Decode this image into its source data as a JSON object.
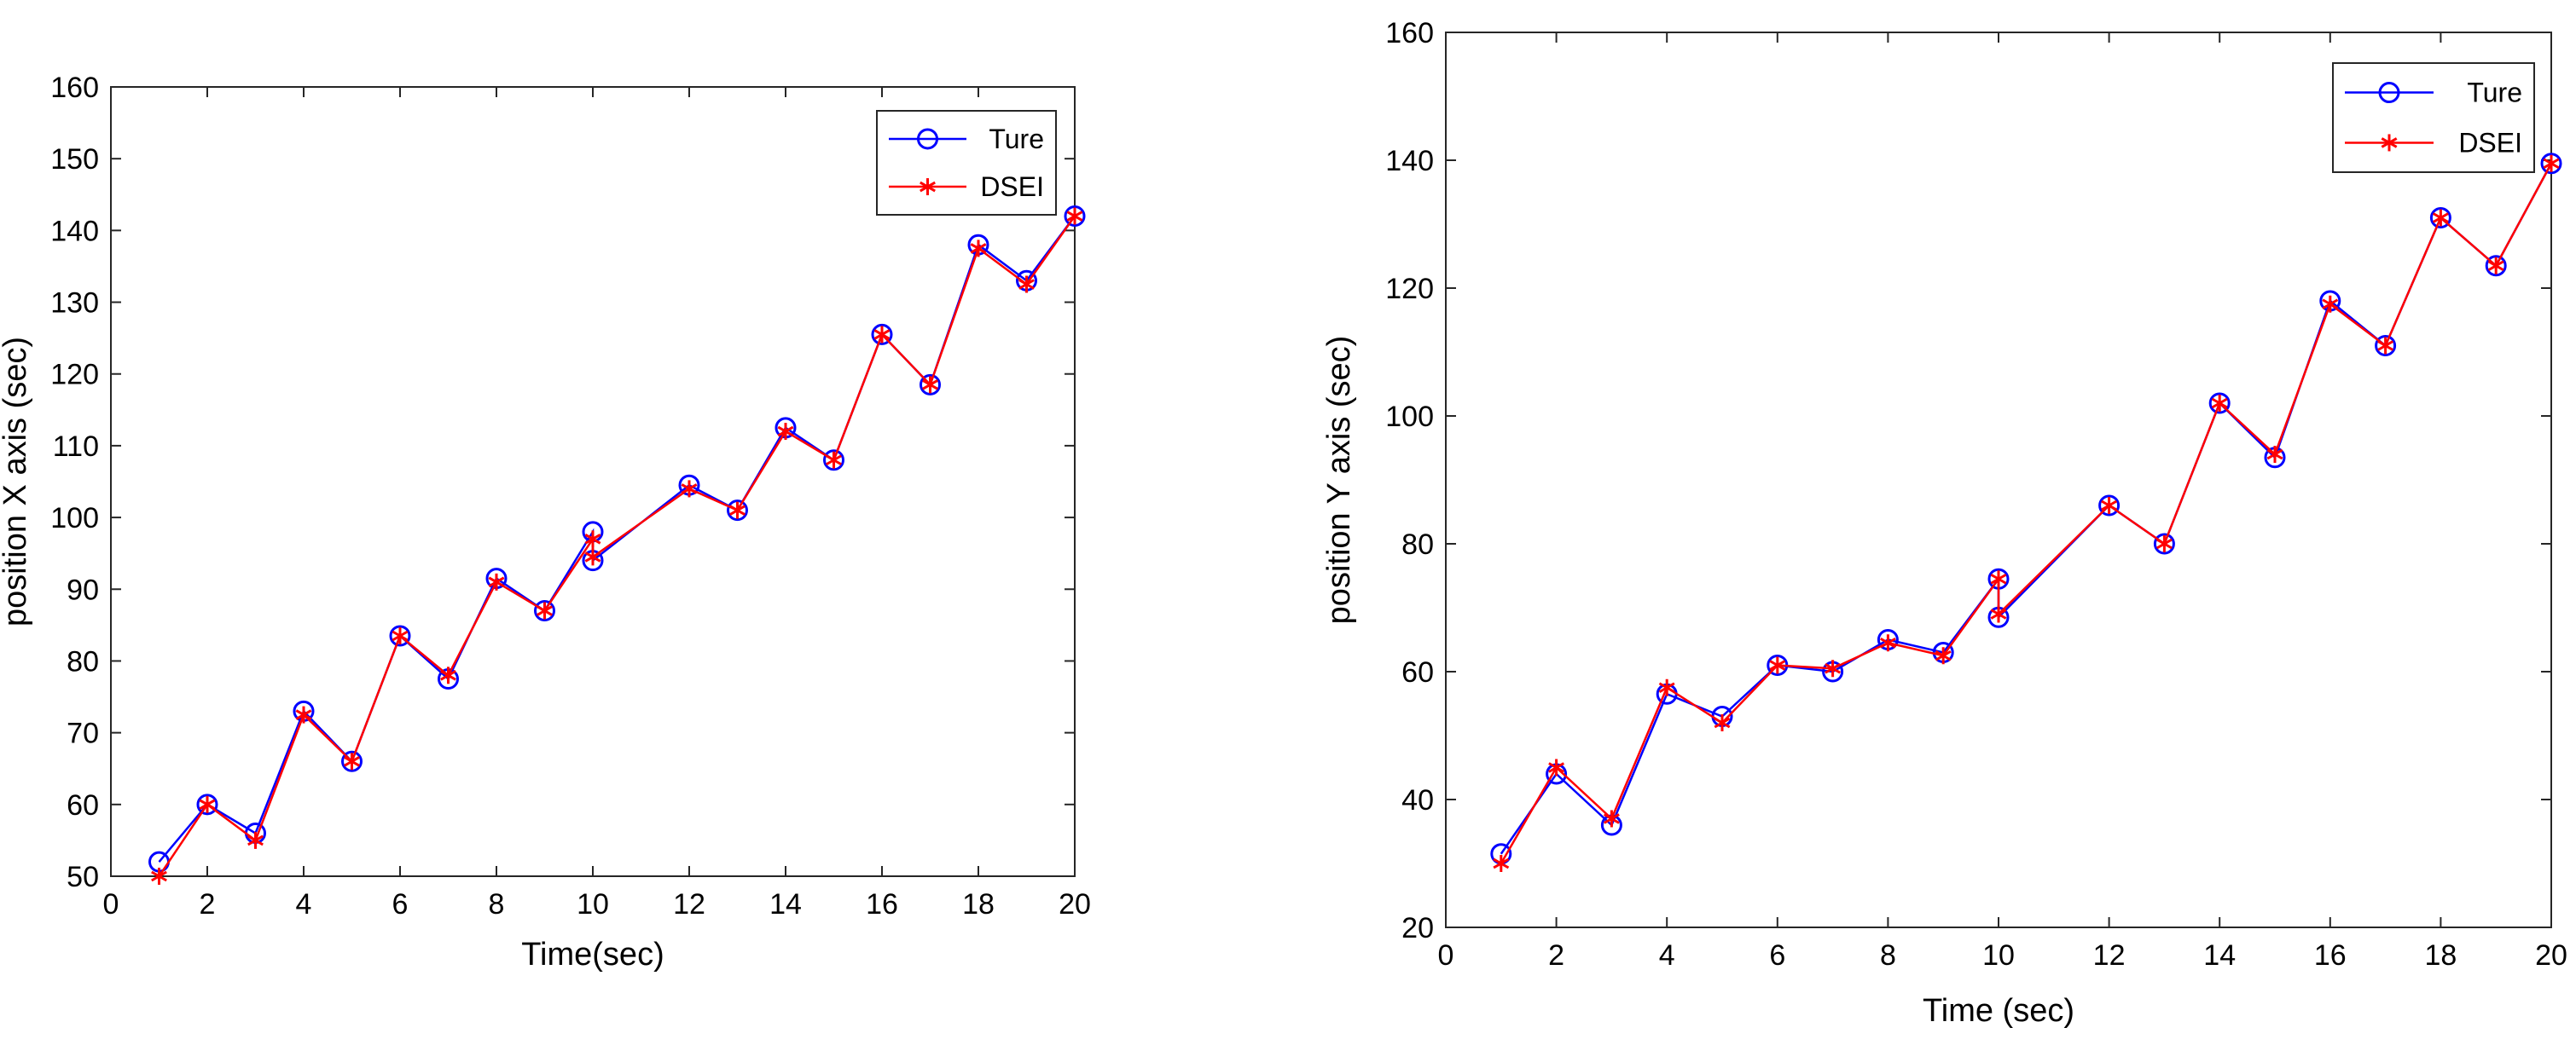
{
  "chart_data": [
    {
      "type": "line",
      "title": "",
      "xlabel": "Time(sec)",
      "ylabel": "position X axis (sec)",
      "xlim": [
        0,
        20
      ],
      "ylim": [
        50,
        160
      ],
      "xticks": [
        0,
        2,
        4,
        6,
        8,
        10,
        12,
        14,
        16,
        18,
        20
      ],
      "yticks": [
        50,
        60,
        70,
        80,
        90,
        100,
        110,
        120,
        130,
        140,
        150,
        160
      ],
      "grid": false,
      "legend_position": "top-right",
      "x": [
        1,
        2,
        3,
        4,
        5,
        6,
        7,
        8,
        9,
        10,
        10,
        12,
        13,
        14,
        15,
        16,
        17,
        18,
        19,
        20
      ],
      "series": [
        {
          "name": "Ture",
          "color": "#0000ff",
          "marker": "circle",
          "values": [
            52,
            60,
            56,
            73,
            66,
            83.5,
            77.5,
            91.5,
            87,
            98,
            94,
            104.5,
            101,
            112.5,
            108,
            125.5,
            118.5,
            138,
            133,
            142
          ]
        },
        {
          "name": "DSEI",
          "color": "#ff0000",
          "marker": "asterisk",
          "values": [
            50,
            60,
            55,
            72.5,
            66,
            83.5,
            78,
            91,
            87,
            97,
            94.5,
            104,
            101,
            112,
            108,
            125.5,
            118.5,
            137.5,
            132.5,
            142
          ]
        }
      ]
    },
    {
      "type": "line",
      "title": "",
      "xlabel": "Time (sec)",
      "ylabel": "position Y axis (sec)",
      "xlim": [
        0,
        20
      ],
      "ylim": [
        20,
        160
      ],
      "xticks": [
        0,
        2,
        4,
        6,
        8,
        10,
        12,
        14,
        16,
        18,
        20
      ],
      "yticks": [
        20,
        40,
        60,
        80,
        100,
        120,
        140,
        160
      ],
      "grid": false,
      "legend_position": "top-right",
      "x": [
        1,
        2,
        3,
        4,
        5,
        6,
        7,
        8,
        9,
        10,
        10,
        12,
        13,
        14,
        15,
        16,
        17,
        18,
        19,
        20
      ],
      "series": [
        {
          "name": "Ture",
          "color": "#0000ff",
          "marker": "circle",
          "values": [
            31.5,
            44,
            36,
            56.5,
            53,
            61,
            60,
            65,
            63,
            74.5,
            68.5,
            86,
            80,
            102,
            93.5,
            118,
            111,
            131,
            123.5,
            139.5
          ]
        },
        {
          "name": "DSEI",
          "color": "#ff0000",
          "marker": "asterisk",
          "values": [
            30,
            45,
            37,
            57.5,
            52,
            61,
            60.5,
            64.5,
            62.5,
            74.5,
            69,
            86,
            80,
            102,
            94,
            117.5,
            111,
            131,
            123.5,
            139.5
          ]
        }
      ]
    }
  ]
}
